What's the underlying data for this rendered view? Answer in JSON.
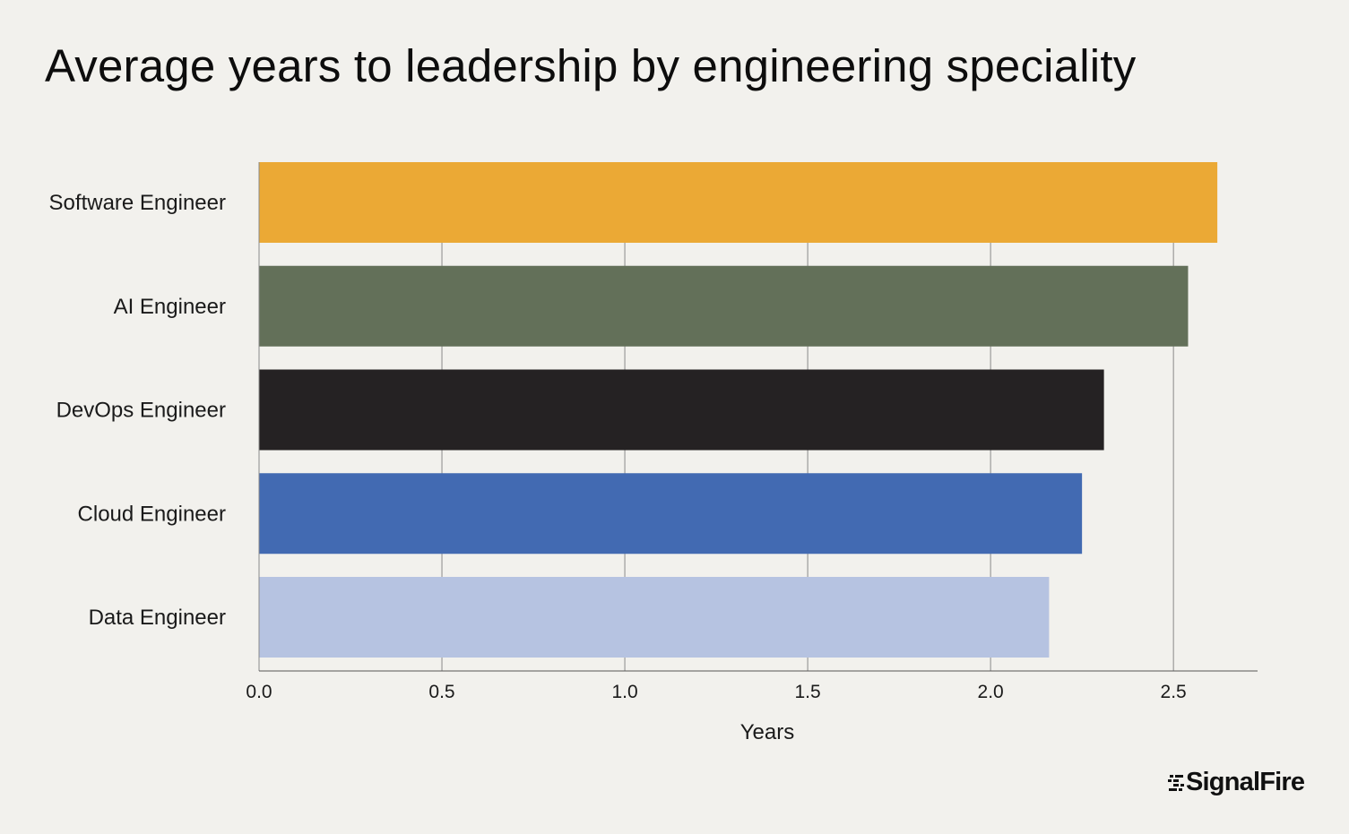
{
  "title": "Average years to leadership by engineering speciality",
  "brand": {
    "name": "SignalFire",
    "logo_icon": "signalfire-logo-icon"
  },
  "chart_data": {
    "type": "bar",
    "orientation": "horizontal",
    "title": "Average years to leadership by engineering speciality",
    "xlabel": "Years",
    "ylabel": "",
    "categories": [
      "Software Engineer",
      "AI Engineer",
      "DevOps Engineer",
      "Cloud Engineer",
      "Data Engineer"
    ],
    "values": [
      2.62,
      2.54,
      2.31,
      2.25,
      2.16
    ],
    "colors": [
      "#eba935",
      "#637059",
      "#252223",
      "#426ab2",
      "#b6c3e1"
    ],
    "xlim": [
      0,
      2.73
    ],
    "xticks": [
      0.0,
      0.5,
      1.0,
      1.5,
      2.0,
      2.5
    ],
    "xtick_labels": [
      "0.0",
      "0.5",
      "1.0",
      "1.5",
      "2.0",
      "2.5"
    ],
    "grid": "vertical",
    "legend": "none"
  }
}
